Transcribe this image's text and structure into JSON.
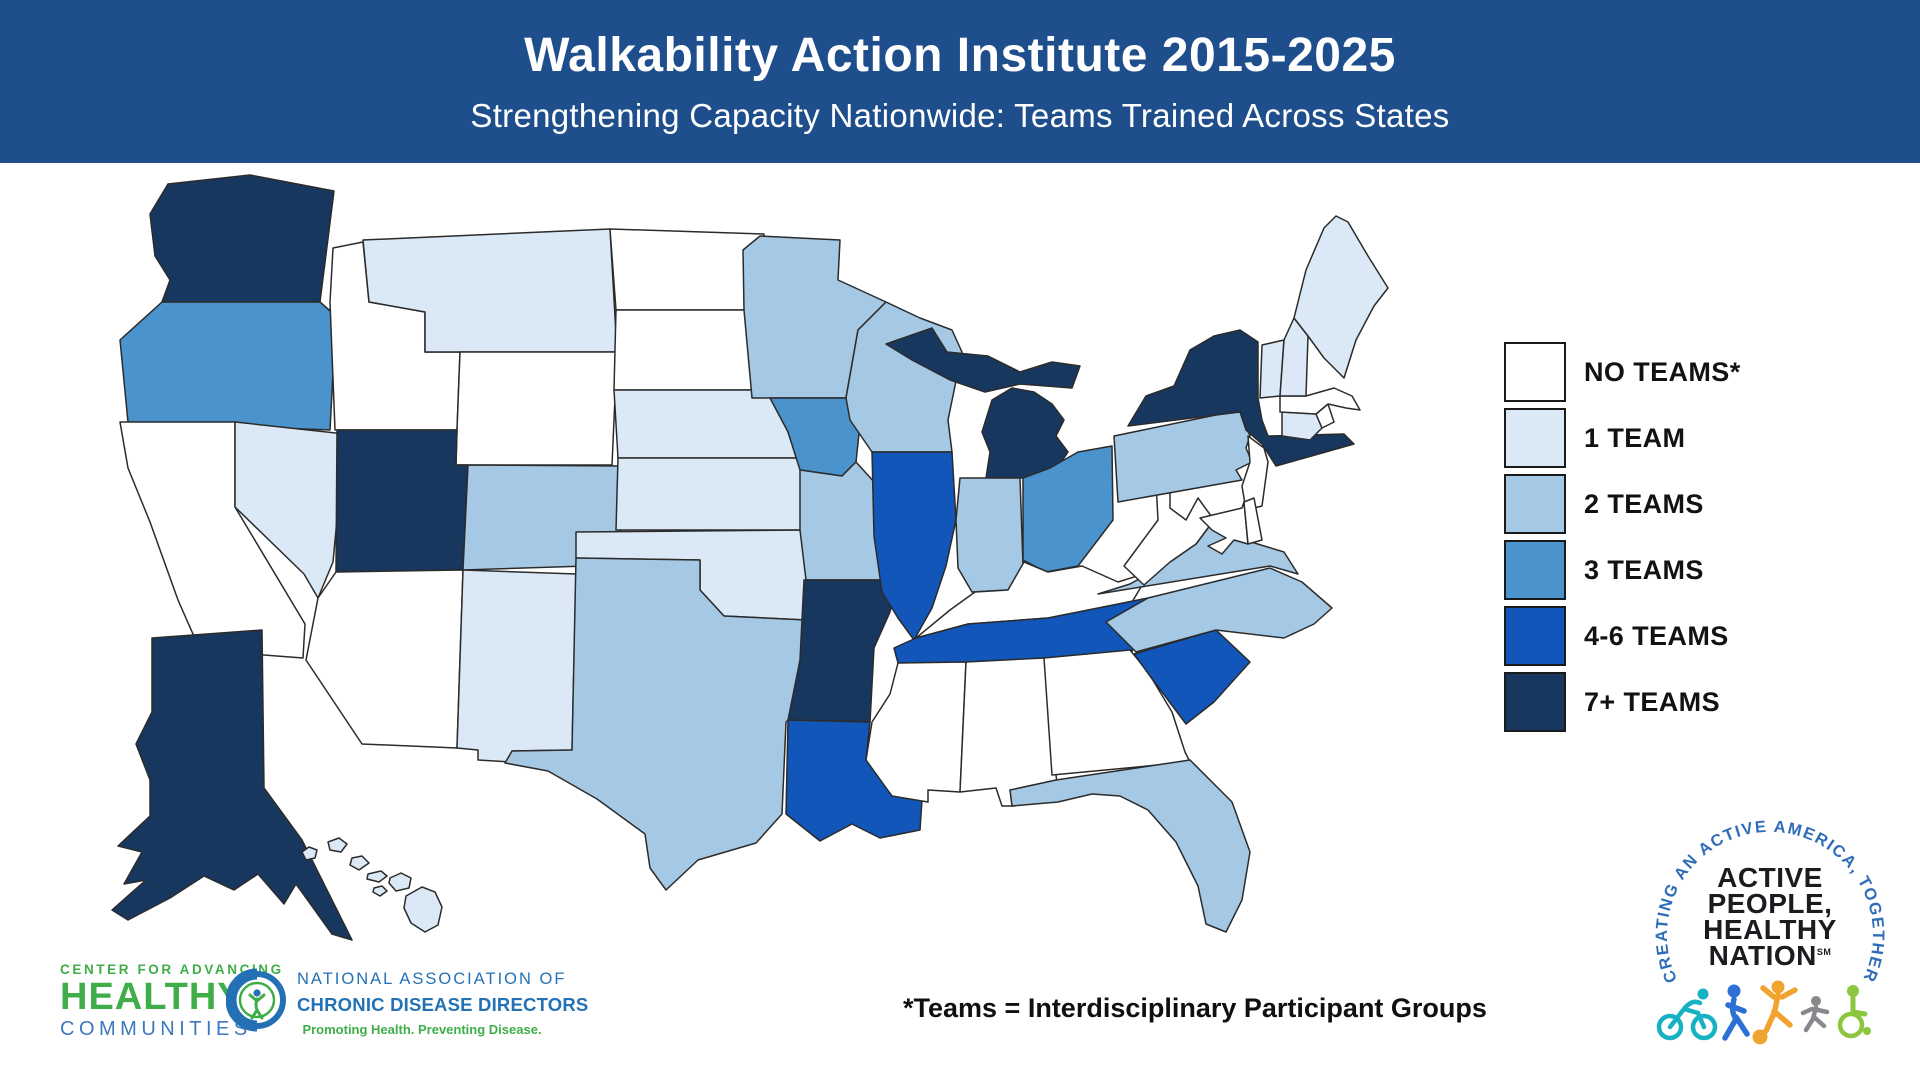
{
  "header": {
    "title": "Walkability Action Institute 2015-2025",
    "subtitle": "Strengthening Capacity Nationwide: Teams Trained Across States"
  },
  "legend": {
    "items": [
      {
        "key": "none",
        "label": "NO TEAMS*",
        "color": "#ffffff"
      },
      {
        "key": "1",
        "label": "1 TEAM",
        "color": "#dbe9f6"
      },
      {
        "key": "2",
        "label": "2 TEAMS",
        "color": "#a5c9e5"
      },
      {
        "key": "3",
        "label": "3 TEAMS",
        "color": "#4a93cd"
      },
      {
        "key": "4-6",
        "label": "4-6 TEAMS",
        "color": "#1156b8"
      },
      {
        "key": "7+",
        "label": "7+ TEAMS",
        "color": "#18375f"
      }
    ]
  },
  "footnote": "*Teams = Interdisciplinary Participant Groups",
  "logos": {
    "cahc": {
      "line1": "CENTER FOR ADVANCING",
      "line2": "HEALTHY",
      "line3": "COMMUNITIES"
    },
    "nacdd": {
      "line1": "NATIONAL ASSOCIATION OF",
      "line2": "CHRONIC DISEASE DIRECTORS",
      "tagline": "Promoting Health. Preventing Disease."
    },
    "aphn": {
      "arc": "CREATING AN ACTIVE AMERICA, TOGETHER",
      "line1": "ACTIVE",
      "line2": "PEOPLE,",
      "line3": "HEALTHY",
      "line4": "NATION",
      "sm": "SM"
    }
  },
  "chart_data": {
    "type": "choropleth",
    "title": "Walkability Action Institute 2015-2025",
    "subtitle": "Strengthening Capacity Nationwide: Teams Trained Across States",
    "unit": "teams trained per state, 2015-2025",
    "note": "*Teams = Interdisciplinary Participant Groups",
    "categories": [
      "NO TEAMS*",
      "1 TEAM",
      "2 TEAMS",
      "3 TEAMS",
      "4-6 TEAMS",
      "7+ TEAMS"
    ],
    "category_colors": {
      "none": "#ffffff",
      "1": "#dbe9f6",
      "2": "#a5c9e5",
      "3": "#4a93cd",
      "4-6": "#1156b8",
      "7+": "#18375f"
    },
    "states": [
      {
        "id": "WA",
        "name": "Washington",
        "teams": "7+"
      },
      {
        "id": "OR",
        "name": "Oregon",
        "teams": "3"
      },
      {
        "id": "CA",
        "name": "California",
        "teams": "none"
      },
      {
        "id": "NV",
        "name": "Nevada",
        "teams": "1"
      },
      {
        "id": "ID",
        "name": "Idaho",
        "teams": "none"
      },
      {
        "id": "MT",
        "name": "Montana",
        "teams": "1"
      },
      {
        "id": "WY",
        "name": "Wyoming",
        "teams": "none"
      },
      {
        "id": "UT",
        "name": "Utah",
        "teams": "7+"
      },
      {
        "id": "CO",
        "name": "Colorado",
        "teams": "2"
      },
      {
        "id": "AZ",
        "name": "Arizona",
        "teams": "none"
      },
      {
        "id": "NM",
        "name": "New Mexico",
        "teams": "1"
      },
      {
        "id": "ND",
        "name": "North Dakota",
        "teams": "none"
      },
      {
        "id": "SD",
        "name": "South Dakota",
        "teams": "none"
      },
      {
        "id": "NE",
        "name": "Nebraska",
        "teams": "1"
      },
      {
        "id": "KS",
        "name": "Kansas",
        "teams": "1"
      },
      {
        "id": "OK",
        "name": "Oklahoma",
        "teams": "1"
      },
      {
        "id": "TX",
        "name": "Texas",
        "teams": "2"
      },
      {
        "id": "MN",
        "name": "Minnesota",
        "teams": "2"
      },
      {
        "id": "IA",
        "name": "Iowa",
        "teams": "3"
      },
      {
        "id": "MO",
        "name": "Missouri",
        "teams": "2"
      },
      {
        "id": "AR",
        "name": "Arkansas",
        "teams": "7+"
      },
      {
        "id": "LA",
        "name": "Louisiana",
        "teams": "4-6"
      },
      {
        "id": "WI",
        "name": "Wisconsin",
        "teams": "2"
      },
      {
        "id": "IL",
        "name": "Illinois",
        "teams": "4-6"
      },
      {
        "id": "MI",
        "name": "Michigan",
        "teams": "7+"
      },
      {
        "id": "IN",
        "name": "Indiana",
        "teams": "2"
      },
      {
        "id": "OH",
        "name": "Ohio",
        "teams": "3"
      },
      {
        "id": "KY",
        "name": "Kentucky",
        "teams": "none"
      },
      {
        "id": "TN",
        "name": "Tennessee",
        "teams": "4-6"
      },
      {
        "id": "MS",
        "name": "Mississippi",
        "teams": "none"
      },
      {
        "id": "AL",
        "name": "Alabama",
        "teams": "none"
      },
      {
        "id": "GA",
        "name": "Georgia",
        "teams": "none"
      },
      {
        "id": "FL",
        "name": "Florida",
        "teams": "2"
      },
      {
        "id": "SC",
        "name": "South Carolina",
        "teams": "4-6"
      },
      {
        "id": "NC",
        "name": "North Carolina",
        "teams": "2"
      },
      {
        "id": "VA",
        "name": "Virginia",
        "teams": "2"
      },
      {
        "id": "WV",
        "name": "West Virginia",
        "teams": "none"
      },
      {
        "id": "PA",
        "name": "Pennsylvania",
        "teams": "2"
      },
      {
        "id": "NY",
        "name": "New York",
        "teams": "7+"
      },
      {
        "id": "NJ",
        "name": "New Jersey",
        "teams": "none"
      },
      {
        "id": "CT",
        "name": "Connecticut",
        "teams": "1"
      },
      {
        "id": "RI",
        "name": "Rhode Island",
        "teams": "none"
      },
      {
        "id": "MA",
        "name": "Massachusetts",
        "teams": "none"
      },
      {
        "id": "VT",
        "name": "Vermont",
        "teams": "1"
      },
      {
        "id": "NH",
        "name": "New Hampshire",
        "teams": "1"
      },
      {
        "id": "ME",
        "name": "Maine",
        "teams": "1"
      },
      {
        "id": "MD",
        "name": "Maryland",
        "teams": "none"
      },
      {
        "id": "DE",
        "name": "Delaware",
        "teams": "none"
      },
      {
        "id": "AK",
        "name": "Alaska",
        "teams": "7+"
      },
      {
        "id": "HI",
        "name": "Hawaii",
        "teams": "1"
      }
    ]
  }
}
